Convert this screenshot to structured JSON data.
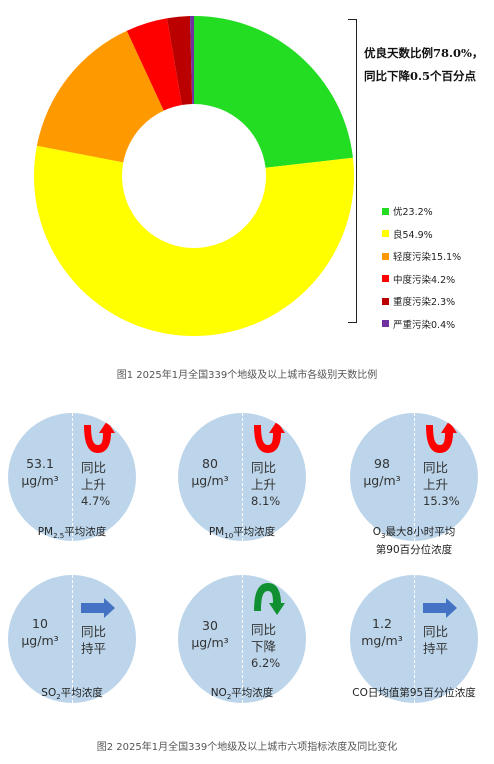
{
  "chart_data": [
    {
      "type": "pie",
      "donut": true,
      "categories": [
        "优",
        "良",
        "轻度污染",
        "中度污染",
        "重度污染",
        "严重污染"
      ],
      "legend_labels": [
        "优23.2%",
        "良54.9%",
        "轻度污染15.1%",
        "中度污染4.2%",
        "重度污染2.3%",
        "严重污染0.4%"
      ],
      "values": [
        23.2,
        54.9,
        15.1,
        4.2,
        2.3,
        0.4
      ],
      "colors": [
        "#22dd22",
        "#ffff00",
        "#ff9900",
        "#ff0000",
        "#bb0000",
        "#7030a0"
      ],
      "annotation": [
        "优良天数比例78.0%，",
        "同比下降0.5个百分点"
      ],
      "legend_position": "right",
      "caption": "图1  2025年1月全国339个地级及以上城市各级别天数比例"
    },
    {
      "type": "table",
      "caption_parts": [
        "图2  2025年1月全国339个地级及以上城市六项指标浓度及同比变化"
      ],
      "pollutants": [
        {
          "value": "53.1",
          "unit": "μg/m³",
          "change": [
            "同比",
            "上升",
            "4.7%"
          ],
          "trend": "up",
          "label_main": "PM",
          "label_sub": "2.5",
          "label_rest": "平均浓度",
          "label_line2": ""
        },
        {
          "value": "80",
          "unit": "μg/m³",
          "change": [
            "同比",
            "上升",
            "8.1%"
          ],
          "trend": "up",
          "label_main": "PM",
          "label_sub": "10",
          "label_rest": "平均浓度",
          "label_line2": ""
        },
        {
          "value": "98",
          "unit": "μg/m³",
          "change": [
            "同比",
            "上升",
            "15.3%"
          ],
          "trend": "up",
          "label_main": "O",
          "label_sub": "3",
          "label_rest": "最大8小时平均",
          "label_line2": "第90百分位浓度"
        },
        {
          "value": "10",
          "unit": "μg/m³",
          "change": [
            "同比",
            "持平",
            ""
          ],
          "trend": "flat",
          "label_main": "SO",
          "label_sub": "2",
          "label_rest": "平均浓度",
          "label_line2": ""
        },
        {
          "value": "30",
          "unit": "μg/m³",
          "change": [
            "同比",
            "下降",
            "6.2%"
          ],
          "trend": "down",
          "label_main": "NO",
          "label_sub": "2",
          "label_rest": "平均浓度",
          "label_line2": ""
        },
        {
          "value": "1.2",
          "unit": "mg/m³",
          "change": [
            "同比",
            "持平",
            ""
          ],
          "trend": "flat",
          "label_main": "CO日均值第95百分位浓度",
          "label_sub": "",
          "label_rest": "",
          "label_line2": ""
        }
      ]
    }
  ],
  "colors": {
    "circle": "#bcd5ea",
    "up_arrow": "#ff0000",
    "down_arrow": "#109030",
    "flat_arrow": "#4472c4"
  },
  "icons": {
    "up": "curved-up-arrow-icon",
    "down": "curved-down-arrow-icon",
    "flat": "right-arrow-icon"
  }
}
